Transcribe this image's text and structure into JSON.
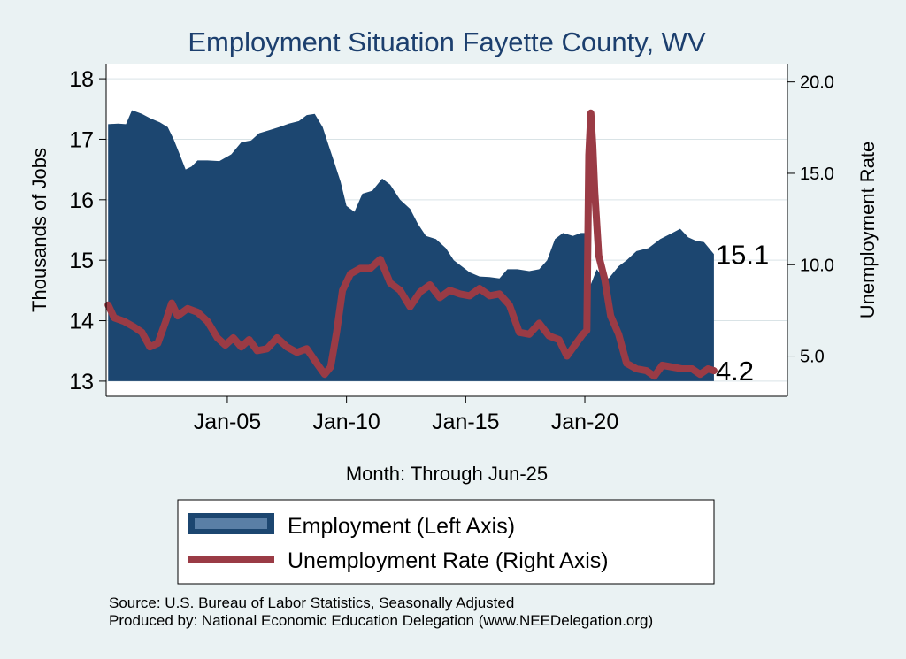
{
  "chart_data": {
    "type": "area",
    "title": "Employment Situation Fayette  County, WV",
    "xlabel": "Month: Through Jun-25",
    "ylabel_left": "Thousands of Jobs",
    "ylabel_right": "Unemployment Rate",
    "x_ticks": [
      "Jan-05",
      "Jan-10",
      "Jan-15",
      "Jan-20"
    ],
    "y_left_ticks": [
      "13",
      "14",
      "15",
      "16",
      "17",
      "18"
    ],
    "y_right_ticks": [
      "5.0",
      "10.0",
      "15.0",
      "20.0"
    ],
    "ylim_left": [
      12.75,
      18.25
    ],
    "ylim_right": [
      2.8,
      21.0
    ],
    "xlim": [
      "1999-12",
      "2028-07"
    ],
    "grid": true,
    "legend_position": "bottom",
    "end_labels": {
      "employment": "15.1",
      "unemployment": "4.2"
    },
    "colors": {
      "employment": "#1c4670",
      "unemployment": "#9a3b45",
      "background": "#eaf2f3",
      "plot_bg": "#ffffff",
      "title": "#1c3f6e"
    },
    "series": [
      {
        "name": "Employment (Left Axis)",
        "axis": "left",
        "style": "area",
        "points": [
          [
            "2000-01",
            17.25
          ],
          [
            "2000-06",
            17.26
          ],
          [
            "2000-10",
            17.25
          ],
          [
            "2001-01",
            17.48
          ],
          [
            "2001-06",
            17.42
          ],
          [
            "2001-10",
            17.35
          ],
          [
            "2002-03",
            17.28
          ],
          [
            "2002-07",
            17.2
          ],
          [
            "2002-10",
            17.0
          ],
          [
            "2003-01",
            16.75
          ],
          [
            "2003-04",
            16.5
          ],
          [
            "2003-07",
            16.55
          ],
          [
            "2003-10",
            16.65
          ],
          [
            "2004-03",
            16.65
          ],
          [
            "2004-09",
            16.64
          ],
          [
            "2005-03",
            16.75
          ],
          [
            "2005-08",
            16.95
          ],
          [
            "2006-01",
            16.98
          ],
          [
            "2006-05",
            17.1
          ],
          [
            "2006-10",
            17.15
          ],
          [
            "2007-03",
            17.2
          ],
          [
            "2007-08",
            17.26
          ],
          [
            "2008-01",
            17.3
          ],
          [
            "2008-05",
            17.4
          ],
          [
            "2008-09",
            17.42
          ],
          [
            "2009-01",
            17.2
          ],
          [
            "2009-04",
            16.9
          ],
          [
            "2009-07",
            16.6
          ],
          [
            "2009-10",
            16.3
          ],
          [
            "2010-01",
            15.9
          ],
          [
            "2010-05",
            15.8
          ],
          [
            "2010-09",
            16.1
          ],
          [
            "2011-02",
            16.15
          ],
          [
            "2011-07",
            16.35
          ],
          [
            "2011-11",
            16.25
          ],
          [
            "2012-04",
            16.0
          ],
          [
            "2012-09",
            15.85
          ],
          [
            "2013-01",
            15.6
          ],
          [
            "2013-05",
            15.4
          ],
          [
            "2013-10",
            15.35
          ],
          [
            "2014-03",
            15.2
          ],
          [
            "2014-07",
            15.0
          ],
          [
            "2014-11",
            14.9
          ],
          [
            "2015-03",
            14.8
          ],
          [
            "2015-08",
            14.73
          ],
          [
            "2016-01",
            14.72
          ],
          [
            "2016-06",
            14.7
          ],
          [
            "2016-10",
            14.85
          ],
          [
            "2017-03",
            14.85
          ],
          [
            "2017-09",
            14.82
          ],
          [
            "2018-02",
            14.85
          ],
          [
            "2018-06",
            15.0
          ],
          [
            "2018-10",
            15.35
          ],
          [
            "2019-02",
            15.45
          ],
          [
            "2019-07",
            15.4
          ],
          [
            "2019-11",
            15.45
          ],
          [
            "2020-02",
            15.45
          ],
          [
            "2020-04",
            14.6
          ],
          [
            "2020-07",
            14.85
          ],
          [
            "2020-10",
            14.72
          ],
          [
            "2021-01",
            14.7
          ],
          [
            "2021-06",
            14.9
          ],
          [
            "2021-10",
            15.0
          ],
          [
            "2022-03",
            15.15
          ],
          [
            "2022-09",
            15.2
          ],
          [
            "2023-03",
            15.35
          ],
          [
            "2023-09",
            15.45
          ],
          [
            "2024-01",
            15.52
          ],
          [
            "2024-05",
            15.38
          ],
          [
            "2024-09",
            15.32
          ],
          [
            "2025-01",
            15.3
          ],
          [
            "2025-06",
            15.1
          ]
        ]
      },
      {
        "name": "Unemployment Rate (Right Axis)",
        "axis": "right",
        "style": "line",
        "points": [
          [
            "2000-01",
            7.8
          ],
          [
            "2000-04",
            7.1
          ],
          [
            "2000-09",
            6.9
          ],
          [
            "2001-02",
            6.6
          ],
          [
            "2001-06",
            6.3
          ],
          [
            "2001-10",
            5.5
          ],
          [
            "2002-02",
            5.7
          ],
          [
            "2002-06",
            6.9
          ],
          [
            "2002-09",
            7.9
          ],
          [
            "2002-12",
            7.2
          ],
          [
            "2003-05",
            7.6
          ],
          [
            "2003-10",
            7.4
          ],
          [
            "2004-03",
            6.9
          ],
          [
            "2004-08",
            6.0
          ],
          [
            "2004-12",
            5.6
          ],
          [
            "2005-04",
            6.0
          ],
          [
            "2005-08",
            5.5
          ],
          [
            "2005-12",
            5.9
          ],
          [
            "2006-04",
            5.3
          ],
          [
            "2006-09",
            5.4
          ],
          [
            "2007-02",
            6.0
          ],
          [
            "2007-07",
            5.5
          ],
          [
            "2007-12",
            5.2
          ],
          [
            "2008-05",
            5.4
          ],
          [
            "2008-10",
            4.6
          ],
          [
            "2009-02",
            4.0
          ],
          [
            "2009-05",
            4.4
          ],
          [
            "2009-08",
            6.3
          ],
          [
            "2009-11",
            8.6
          ],
          [
            "2010-03",
            9.5
          ],
          [
            "2010-08",
            9.8
          ],
          [
            "2011-01",
            9.8
          ],
          [
            "2011-06",
            10.3
          ],
          [
            "2011-11",
            9.0
          ],
          [
            "2012-04",
            8.6
          ],
          [
            "2012-09",
            7.7
          ],
          [
            "2013-02",
            8.5
          ],
          [
            "2013-07",
            8.9
          ],
          [
            "2013-12",
            8.2
          ],
          [
            "2014-05",
            8.6
          ],
          [
            "2014-10",
            8.4
          ],
          [
            "2015-03",
            8.3
          ],
          [
            "2015-08",
            8.7
          ],
          [
            "2016-01",
            8.3
          ],
          [
            "2016-06",
            8.4
          ],
          [
            "2016-11",
            7.8
          ],
          [
            "2017-04",
            6.3
          ],
          [
            "2017-09",
            6.2
          ],
          [
            "2018-02",
            6.8
          ],
          [
            "2018-07",
            6.1
          ],
          [
            "2018-12",
            5.9
          ],
          [
            "2019-04",
            5.0
          ],
          [
            "2019-08",
            5.6
          ],
          [
            "2019-12",
            6.2
          ],
          [
            "2020-02",
            6.4
          ],
          [
            "2020-03",
            16.0
          ],
          [
            "2020-04",
            18.3
          ],
          [
            "2020-05",
            16.5
          ],
          [
            "2020-06",
            14.0
          ],
          [
            "2020-08",
            10.5
          ],
          [
            "2020-11",
            9.2
          ],
          [
            "2021-02",
            7.2
          ],
          [
            "2021-06",
            6.2
          ],
          [
            "2021-10",
            4.6
          ],
          [
            "2022-03",
            4.3
          ],
          [
            "2022-08",
            4.2
          ],
          [
            "2022-12",
            3.9
          ],
          [
            "2023-04",
            4.5
          ],
          [
            "2023-09",
            4.4
          ],
          [
            "2024-02",
            4.3
          ],
          [
            "2024-07",
            4.3
          ],
          [
            "2024-11",
            4.0
          ],
          [
            "2025-03",
            4.3
          ],
          [
            "2025-06",
            4.2
          ]
        ]
      }
    ],
    "legend": [
      {
        "label": "Employment (Left Axis)"
      },
      {
        "label": "Unemployment Rate (Right Axis)"
      }
    ],
    "source_lines": [
      "Source: U.S. Bureau of Labor Statistics, Seasonally Adjusted",
      "Produced by: National Economic Education Delegation (www.NEEDelegation.org)"
    ]
  }
}
